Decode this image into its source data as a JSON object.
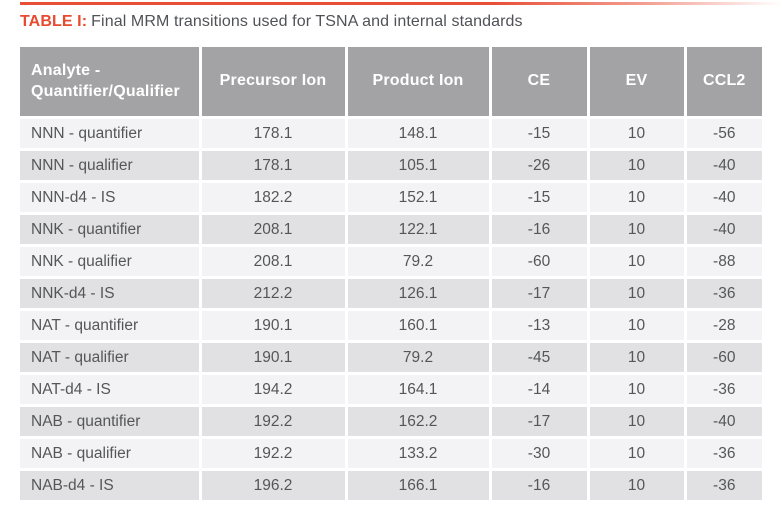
{
  "caption": {
    "label": "TABLE I:",
    "text": "Final MRM transitions used for TSNA and internal standards"
  },
  "colors": {
    "accent_orange": "#E84F37",
    "caption_label_orange": "#E84A30",
    "header_bg_gray": "#A3A3A5",
    "header_text": "#FFFFFF",
    "row_light": "#F3F3F5",
    "row_dark": "#E1E1E3",
    "body_text": "#55565A"
  },
  "table": {
    "columns": [
      "Analyte - Quantifier/Qualifier",
      "Precursor Ion",
      "Product Ion",
      "CE",
      "EV",
      "CCL2"
    ],
    "column_keys": [
      "analyte",
      "precursor-ion",
      "product-ion",
      "ce",
      "ev",
      "ccl2"
    ],
    "rows": [
      [
        "NNN - quantifier",
        "178.1",
        "148.1",
        "-15",
        "10",
        "-56"
      ],
      [
        "NNN - qualifier",
        "178.1",
        "105.1",
        "-26",
        "10",
        "-40"
      ],
      [
        "NNN-d4 - IS",
        "182.2",
        "152.1",
        "-15",
        "10",
        "-40"
      ],
      [
        "NNK - quantifier",
        "208.1",
        "122.1",
        "-16",
        "10",
        "-40"
      ],
      [
        "NNK - qualifier",
        "208.1",
        "79.2",
        "-60",
        "10",
        "-88"
      ],
      [
        "NNK-d4 - IS",
        "212.2",
        "126.1",
        "-17",
        "10",
        "-36"
      ],
      [
        "NAT - quantifier",
        "190.1",
        "160.1",
        "-13",
        "10",
        "-28"
      ],
      [
        "NAT - qualifier",
        "190.1",
        "79.2",
        "-45",
        "10",
        "-60"
      ],
      [
        "NAT-d4 - IS",
        "194.2",
        "164.1",
        "-14",
        "10",
        "-36"
      ],
      [
        "NAB - quantifier",
        "192.2",
        "162.2",
        "-17",
        "10",
        "-40"
      ],
      [
        "NAB - qualifier",
        "192.2",
        "133.2",
        "-30",
        "10",
        "-36"
      ],
      [
        "NAB-d4 - IS",
        "196.2",
        "166.1",
        "-16",
        "10",
        "-36"
      ]
    ]
  },
  "chart_data": {
    "type": "table",
    "title": "TABLE I: Final MRM transitions used for TSNA and internal standards",
    "columns": [
      "Analyte - Quantifier/Qualifier",
      "Precursor Ion",
      "Product Ion",
      "CE",
      "EV",
      "CCL2"
    ],
    "rows": [
      [
        "NNN - quantifier",
        178.1,
        148.1,
        -15,
        10,
        -56
      ],
      [
        "NNN - qualifier",
        178.1,
        105.1,
        -26,
        10,
        -40
      ],
      [
        "NNN-d4 - IS",
        182.2,
        152.1,
        -15,
        10,
        -40
      ],
      [
        "NNK - quantifier",
        208.1,
        122.1,
        -16,
        10,
        -40
      ],
      [
        "NNK - qualifier",
        208.1,
        79.2,
        -60,
        10,
        -88
      ],
      [
        "NNK-d4 - IS",
        212.2,
        126.1,
        -17,
        10,
        -36
      ],
      [
        "NAT - quantifier",
        190.1,
        160.1,
        -13,
        10,
        -28
      ],
      [
        "NAT - qualifier",
        190.1,
        79.2,
        -45,
        10,
        -60
      ],
      [
        "NAT-d4 - IS",
        194.2,
        164.1,
        -14,
        10,
        -36
      ],
      [
        "NAB - quantifier",
        192.2,
        162.2,
        -17,
        10,
        -40
      ],
      [
        "NAB - qualifier",
        192.2,
        133.2,
        -30,
        10,
        -36
      ],
      [
        "NAB-d4 - IS",
        196.2,
        166.1,
        -16,
        10,
        -36
      ]
    ]
  }
}
